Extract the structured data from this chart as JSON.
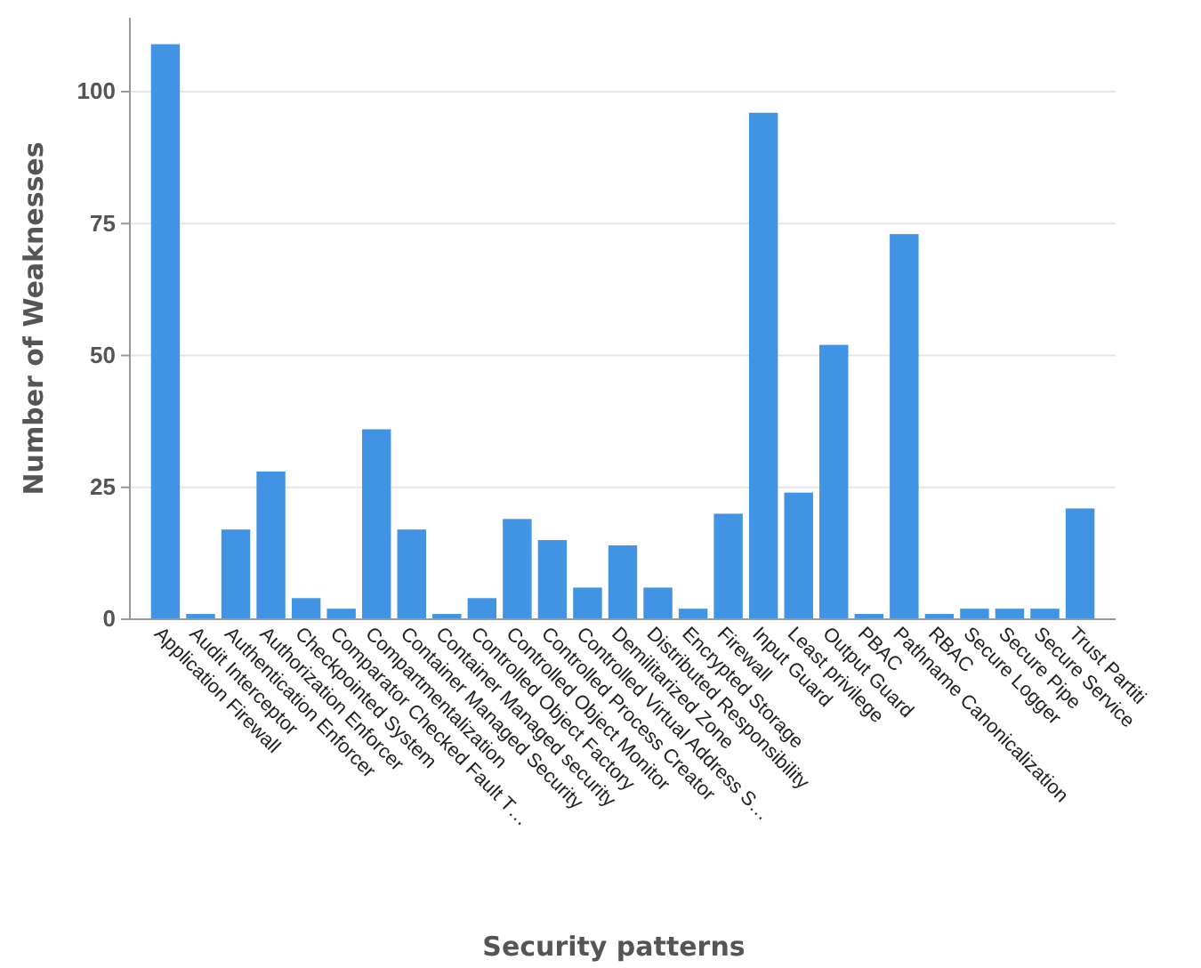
{
  "chart_data": {
    "type": "bar",
    "xlabel": "Security patterns",
    "ylabel": "Number of Weaknesses",
    "categories": [
      "Application Firewall",
      "Audit Interceptor",
      "Authentication Enforcer",
      "Authorization Enforcer",
      "Checkpointed System",
      "Comparator Checked Fault T…",
      "Compartmentalization",
      "Container Managed Security",
      "Container Managed security",
      "Controlled Object Factory",
      "Controlled Object Monitor",
      "Controlled Process Creator",
      "Controlled Virtual Address S…",
      "Demilitarized Zone",
      "Distributed Responsibility",
      "Encrypted Storage",
      "Firewall",
      "Input Guard",
      "Least privilege",
      "Output Guard",
      "PBAC",
      "Pathname Canonicalization",
      "RBAC",
      "Secure Logger",
      "Secure Pipe",
      "Secure Service",
      "Trust Partiti"
    ],
    "values": [
      109,
      1,
      17,
      28,
      4,
      2,
      36,
      17,
      1,
      4,
      19,
      15,
      6,
      14,
      6,
      2,
      20,
      96,
      24,
      52,
      1,
      73,
      1,
      2,
      2,
      2,
      21
    ],
    "color": "#4193e3",
    "ylim": [
      0,
      114
    ],
    "yticks": [
      0,
      25,
      50,
      75,
      100
    ],
    "grid": "y"
  }
}
